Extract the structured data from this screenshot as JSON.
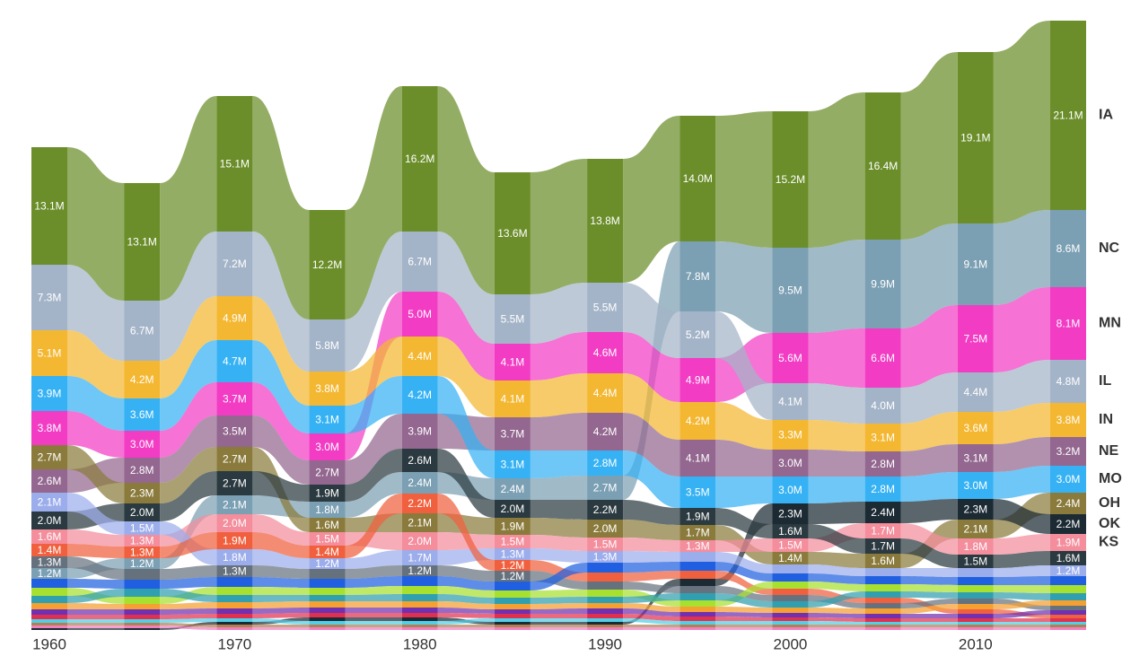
{
  "chart_data": {
    "type": "ranked-stream",
    "x": [
      1960,
      1965,
      1970,
      1975,
      1980,
      1985,
      1990,
      1995,
      2000,
      2005,
      2010,
      2015
    ],
    "xlim": [
      1960,
      2015
    ],
    "xticks": [
      1960,
      1970,
      1980,
      1990,
      2000,
      2010
    ],
    "series": [
      {
        "name": "IA",
        "color": "#6b8e2a",
        "values": [
          13.1,
          13.1,
          15.1,
          12.2,
          16.2,
          13.6,
          13.8,
          14.0,
          15.2,
          16.4,
          19.1,
          21.1
        ],
        "value_labels": [
          "13.1M",
          "13.1M",
          "15.1M",
          "12.2M",
          "16.2M",
          "13.6M",
          "13.8M",
          "14.0M",
          "15.2M",
          "16.4M",
          "19.1M",
          "21.1M"
        ]
      },
      {
        "name": "NC",
        "color": "#7b9fb3",
        "values": [
          1.2,
          1.2,
          2.1,
          1.8,
          2.4,
          2.4,
          2.7,
          7.8,
          9.5,
          9.9,
          9.1,
          8.6
        ],
        "value_labels": [
          "1.2M",
          "1.2M",
          "2.1M",
          "1.8M",
          "2.4M",
          "2.4M",
          "2.7M",
          "7.8M",
          "9.5M",
          "9.9M",
          "9.1M",
          "8.6M"
        ]
      },
      {
        "name": "MN",
        "color": "#f23cc4",
        "values": [
          3.8,
          3.0,
          3.7,
          3.0,
          5.0,
          4.1,
          4.6,
          4.9,
          5.6,
          6.6,
          7.5,
          8.1
        ],
        "value_labels": [
          "3.8M",
          "3.0M",
          "3.7M",
          "3.0M",
          "5.0M",
          "4.1M",
          "4.6M",
          "4.9M",
          "5.6M",
          "6.6M",
          "7.5M",
          "8.1M"
        ]
      },
      {
        "name": "IL",
        "color": "#a4b4c8",
        "values": [
          7.3,
          6.7,
          7.2,
          5.8,
          6.7,
          5.5,
          5.5,
          5.2,
          4.1,
          4.0,
          4.4,
          4.8
        ],
        "value_labels": [
          "7.3M",
          "6.7M",
          "7.2M",
          "5.8M",
          "6.7M",
          "5.5M",
          "5.5M",
          "5.2M",
          "4.1M",
          "4.0M",
          "4.4M",
          "4.8M"
        ]
      },
      {
        "name": "IN",
        "color": "#f4b731",
        "values": [
          5.1,
          4.2,
          4.9,
          3.8,
          4.4,
          4.1,
          4.4,
          4.2,
          3.3,
          3.1,
          3.6,
          3.8
        ],
        "value_labels": [
          "5.1M",
          "4.2M",
          "4.9M",
          "3.8M",
          "4.4M",
          "4.1M",
          "4.4M",
          "4.2M",
          "3.3M",
          "3.1M",
          "3.6M",
          "3.8M"
        ]
      },
      {
        "name": "NE",
        "color": "#93678f",
        "values": [
          2.6,
          2.8,
          3.5,
          2.7,
          3.9,
          3.7,
          4.2,
          4.1,
          3.0,
          2.8,
          3.1,
          3.2
        ],
        "value_labels": [
          "2.6M",
          "2.8M",
          "3.5M",
          "2.7M",
          "3.9M",
          "3.7M",
          "4.2M",
          "4.1M",
          "3.0M",
          "2.8M",
          "3.1M",
          "3.2M"
        ]
      },
      {
        "name": "MO",
        "color": "#36b2f4",
        "values": [
          3.9,
          3.6,
          4.7,
          3.1,
          4.2,
          3.1,
          2.8,
          3.5,
          3.0,
          2.8,
          3.0,
          3.0
        ],
        "value_labels": [
          "3.9M",
          "3.6M",
          "4.7M",
          "3.1M",
          "4.2M",
          "3.1M",
          "2.8M",
          "3.5M",
          "3.0M",
          "2.8M",
          "3.0M",
          "3.0M"
        ]
      },
      {
        "name": "OH",
        "color": "#8a7b3c",
        "values": [
          2.7,
          2.3,
          2.7,
          1.6,
          2.1,
          1.9,
          2.0,
          1.7,
          1.4,
          1.6,
          2.1,
          2.4
        ],
        "value_labels": [
          "2.7M",
          "2.3M",
          "2.7M",
          "1.6M",
          "2.1M",
          "1.9M",
          "2.0M",
          "1.7M",
          "1.4M",
          "1.6M",
          "2.1M",
          "2.4M"
        ]
      },
      {
        "name": "OK",
        "color": "#1c2a33",
        "values": [
          0.2,
          0.2,
          0.3,
          0.4,
          0.4,
          0.3,
          0.3,
          0.8,
          2.3,
          2.4,
          2.3,
          2.2
        ],
        "value_labels": [
          null,
          null,
          null,
          null,
          null,
          null,
          null,
          null,
          "2.3M",
          "2.4M",
          "2.3M",
          "2.2M"
        ]
      },
      {
        "name": "KS",
        "color": "#f48d9c",
        "values": [
          1.6,
          1.3,
          2.0,
          1.5,
          2.0,
          1.5,
          1.5,
          1.3,
          1.5,
          1.7,
          1.8,
          1.9
        ],
        "value_labels": [
          "1.6M",
          "1.3M",
          "2.0M",
          "1.5M",
          "2.0M",
          "1.5M",
          "1.5M",
          "1.3M",
          "1.5M",
          "1.7M",
          "1.8M",
          "1.9M"
        ]
      },
      {
        "color": "#2b3a40",
        "values": [
          2.0,
          2.0,
          2.7,
          1.9,
          2.6,
          2.0,
          2.2,
          1.9,
          1.6,
          1.7,
          1.5,
          1.6
        ],
        "value_labels": [
          "2.0M",
          "2.0M",
          "2.7M",
          "1.9M",
          "2.6M",
          "2.0M",
          "2.2M",
          "1.9M",
          "1.6M",
          "1.7M",
          "1.5M",
          "1.6M"
        ]
      },
      {
        "color": "#9cadec",
        "values": [
          2.1,
          1.5,
          1.8,
          1.2,
          1.7,
          1.3,
          1.3,
          1.1,
          1.0,
          0.9,
          1.0,
          1.2
        ],
        "value_labels": [
          "2.1M",
          "1.5M",
          "1.8M",
          "1.2M",
          "1.7M",
          "1.3M",
          "1.3M",
          null,
          null,
          null,
          null,
          "1.2M"
        ]
      },
      {
        "color": "#f0603e",
        "values": [
          1.4,
          1.3,
          1.9,
          1.4,
          2.2,
          1.2,
          1.0,
          0.9,
          0.7,
          0.6,
          0.5,
          0.4
        ],
        "value_labels": [
          "1.4M",
          "1.3M",
          "1.9M",
          "1.4M",
          "2.2M",
          "1.2M",
          null,
          null,
          null,
          null,
          null,
          null
        ]
      },
      {
        "color": "#66717e",
        "values": [
          1.3,
          1.2,
          1.3,
          1.1,
          1.2,
          1.2,
          0.9,
          0.8,
          0.7,
          0.6,
          0.6,
          0.5
        ],
        "value_labels": [
          "1.3M",
          null,
          "1.3M",
          null,
          "1.2M",
          "1.2M",
          null,
          null,
          null,
          null,
          null,
          null
        ]
      },
      {
        "color": "#2060e0",
        "values": [
          1.0,
          1.0,
          1.1,
          1.0,
          1.1,
          1.0,
          1.1,
          1.0,
          0.9,
          0.9,
          0.9,
          1.0
        ]
      },
      {
        "color": "#a8e030",
        "values": [
          0.9,
          0.8,
          0.9,
          0.8,
          0.9,
          0.8,
          0.8,
          0.7,
          0.8,
          0.8,
          0.8,
          0.9
        ]
      },
      {
        "color": "#30a0b0",
        "values": [
          0.8,
          0.9,
          0.8,
          0.7,
          0.8,
          0.7,
          0.7,
          0.8,
          0.7,
          0.7,
          0.7,
          0.8
        ]
      },
      {
        "color": "#f5a030",
        "values": [
          0.7,
          0.6,
          0.7,
          0.7,
          0.7,
          0.6,
          0.6,
          0.6,
          0.6,
          0.6,
          0.6,
          0.6
        ]
      },
      {
        "color": "#7030b0",
        "values": [
          0.6,
          0.6,
          0.6,
          0.6,
          0.6,
          0.5,
          0.6,
          0.5,
          0.5,
          0.5,
          0.5,
          0.5
        ]
      },
      {
        "color": "#e03050",
        "values": [
          0.5,
          0.5,
          0.5,
          0.5,
          0.5,
          0.5,
          0.5,
          0.5,
          0.4,
          0.4,
          0.4,
          0.4
        ]
      },
      {
        "color": "#50d0e8",
        "values": [
          0.4,
          0.4,
          0.4,
          0.4,
          0.4,
          0.4,
          0.4,
          0.4,
          0.4,
          0.3,
          0.3,
          0.3
        ]
      },
      {
        "color": "#b08050",
        "values": [
          0.3,
          0.3,
          0.3,
          0.3,
          0.3,
          0.3,
          0.3,
          0.3,
          0.3,
          0.3,
          0.3,
          0.3
        ]
      },
      {
        "color": "#f080c0",
        "values": [
          0.3,
          0.3,
          0.3,
          0.3,
          0.3,
          0.3,
          0.3,
          0.3,
          0.3,
          0.3,
          0.3,
          0.3
        ]
      }
    ]
  }
}
